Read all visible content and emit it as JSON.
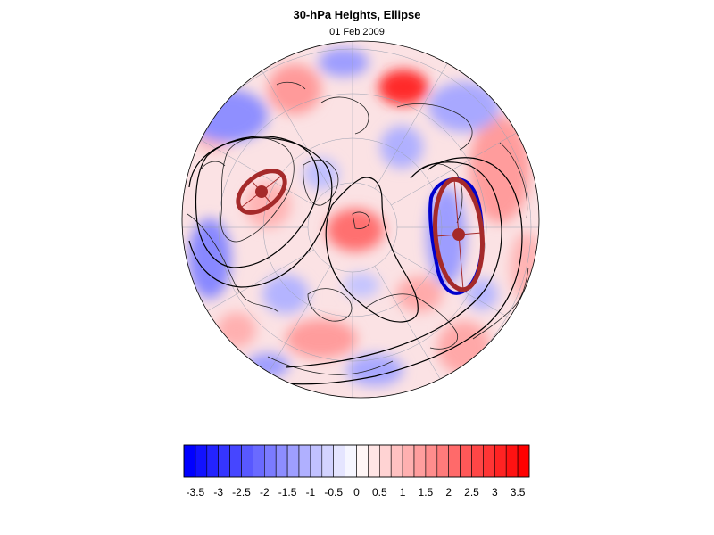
{
  "title": "30-hPa Heights, Ellipse",
  "date": "01 Feb 2009",
  "colorbar": {
    "min": -3.75,
    "max": 3.75,
    "step": 0.25,
    "tick_labels": [
      "-3.5",
      "-3",
      "-2.5",
      "-2",
      "-1.5",
      "-1",
      "-0.5",
      "0",
      "0.5",
      "1",
      "1.5",
      "2",
      "2.5",
      "3",
      "3.5"
    ],
    "low_color": "#0000ff",
    "high_color": "#ff0000"
  },
  "map": {
    "projection": "polar-stereographic-north",
    "ellipse_color": "#a52a2a",
    "contour_color": "#000000",
    "blue_contour_color": "#0000cc"
  }
}
